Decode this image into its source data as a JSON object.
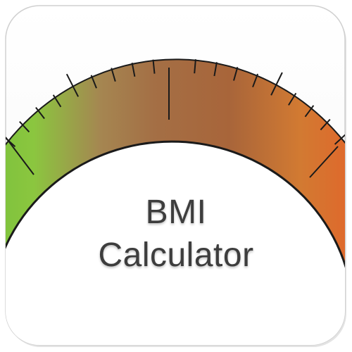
{
  "app": {
    "title_line_1": "BMI",
    "title_line_2": "Calculator"
  },
  "colors": {
    "tile_background": "#ffffff",
    "tile_border": "#d4d4d4",
    "gauge_green": "#8bc63f",
    "gauge_brown": "#9a6a3c",
    "gauge_orange": "#d97a30",
    "gauge_red": "#e33a22",
    "tick_color": "#1a1a1a",
    "text_color": "#3d3d3d"
  },
  "icons": [
    "bmi-gauge-icon"
  ]
}
